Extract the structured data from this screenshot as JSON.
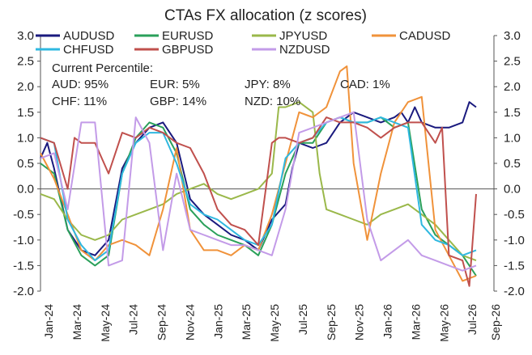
{
  "chart_data": {
    "type": "line",
    "title": "CTAs FX allocation (z scores)",
    "ylim": [
      -2.0,
      3.0
    ],
    "y_ticks": [
      "3.0",
      "2.5",
      "2.0",
      "1.5",
      "1.0",
      "0.5",
      "0.0",
      "-0.5",
      "-1.0",
      "-1.5",
      "-2.0"
    ],
    "y_ticks_right": [
      "3.0",
      "2.5",
      "2.0",
      "1.5",
      "1.0",
      "0.5",
      "0.0",
      "-0.5",
      "-1.0",
      "-1.5",
      "-2.0"
    ],
    "x_ticks": [
      "Jan-24",
      "Mar-24",
      "May-24",
      "Jul-24",
      "Sep-24",
      "Nov-24",
      "Jan-25",
      "Mar-25",
      "May-25",
      "Jul-25",
      "Sep-25",
      "Nov-25",
      "Jan-26",
      "Mar-26",
      "May-26",
      "Jul-26",
      "Sep-26"
    ],
    "xlim": [
      0,
      32
    ],
    "grid": false,
    "legend": "top",
    "legend_items": [
      {
        "name": "AUDUSD",
        "color": "#1a1a7e"
      },
      {
        "name": "EURUSD",
        "color": "#2aa05a"
      },
      {
        "name": "JPYUSD",
        "color": "#9ab84a"
      },
      {
        "name": "CADUSD",
        "color": "#f0923a"
      },
      {
        "name": "CHFUSD",
        "color": "#2fb8e0"
      },
      {
        "name": "GBPUSD",
        "color": "#c0504d"
      },
      {
        "name": "NZDUSD",
        "color": "#c39be8"
      }
    ],
    "annotation": {
      "heading": "Current Percentile:",
      "items": [
        "AUD: 95%",
        "EUR: 5%",
        "JPY: 8%",
        "CAD: 1%",
        "CHF: 11%",
        "GBP: 14%",
        "NZD: 10%"
      ]
    },
    "series": [
      {
        "name": "AUDUSD",
        "color": "#1a1a7e",
        "points": [
          [
            0,
            0.6
          ],
          [
            0.5,
            0.9
          ],
          [
            1,
            0.4
          ],
          [
            2,
            -0.8
          ],
          [
            3,
            -1.2
          ],
          [
            4,
            -1.3
          ],
          [
            5,
            -1.0
          ],
          [
            6,
            0.4
          ],
          [
            7,
            0.9
          ],
          [
            8,
            1.2
          ],
          [
            9,
            1.3
          ],
          [
            10,
            0.9
          ],
          [
            11,
            -0.2
          ],
          [
            12,
            -0.5
          ],
          [
            13,
            -0.7
          ],
          [
            14,
            -0.9
          ],
          [
            15,
            -1.0
          ],
          [
            16,
            -1.2
          ],
          [
            17,
            -0.6
          ],
          [
            18,
            -0.3
          ],
          [
            18.5,
            0.4
          ],
          [
            19,
            0.9
          ],
          [
            20,
            0.8
          ],
          [
            21,
            0.9
          ],
          [
            22,
            1.3
          ],
          [
            23,
            1.5
          ],
          [
            24,
            1.4
          ],
          [
            25,
            1.3
          ],
          [
            26,
            1.4
          ],
          [
            26.5,
            1.5
          ],
          [
            27,
            1.3
          ],
          [
            27.5,
            1.6
          ],
          [
            28,
            1.3
          ],
          [
            29,
            1.2
          ],
          [
            30,
            1.2
          ],
          [
            31,
            1.3
          ],
          [
            31.5,
            1.7
          ],
          [
            32,
            1.6
          ]
        ]
      },
      {
        "name": "EURUSD",
        "color": "#2aa05a",
        "points": [
          [
            0,
            0.5
          ],
          [
            1,
            0.3
          ],
          [
            2,
            -0.8
          ],
          [
            3,
            -1.3
          ],
          [
            4,
            -1.5
          ],
          [
            5,
            -1.3
          ],
          [
            6,
            0.3
          ],
          [
            7,
            1.0
          ],
          [
            8,
            1.3
          ],
          [
            9,
            1.2
          ],
          [
            10,
            0.7
          ],
          [
            11,
            -0.4
          ],
          [
            12,
            -0.7
          ],
          [
            13,
            -0.9
          ],
          [
            14,
            -1.0
          ],
          [
            15,
            -1.1
          ],
          [
            16,
            -1.3
          ],
          [
            17,
            -0.7
          ],
          [
            18,
            0.3
          ],
          [
            19,
            0.9
          ],
          [
            20,
            0.9
          ],
          [
            21,
            1.3
          ],
          [
            22,
            1.4
          ],
          [
            23,
            1.3
          ],
          [
            24,
            1.3
          ],
          [
            25,
            1.4
          ],
          [
            26,
            1.2
          ],
          [
            27,
            1.3
          ],
          [
            28,
            -0.4
          ],
          [
            29,
            -0.9
          ],
          [
            30,
            -1.1
          ],
          [
            31,
            -1.3
          ],
          [
            32,
            -1.7
          ]
        ]
      },
      {
        "name": "JPYUSD",
        "color": "#9ab84a",
        "points": [
          [
            0,
            -0.1
          ],
          [
            1,
            -0.2
          ],
          [
            2,
            -0.6
          ],
          [
            3,
            -0.9
          ],
          [
            4,
            -1.0
          ],
          [
            5,
            -0.9
          ],
          [
            6,
            -0.6
          ],
          [
            7,
            -0.5
          ],
          [
            8,
            -0.4
          ],
          [
            9,
            -0.3
          ],
          [
            10,
            -0.1
          ],
          [
            11,
            0.0
          ],
          [
            12,
            0.1
          ],
          [
            13,
            -0.1
          ],
          [
            14,
            -0.2
          ],
          [
            15,
            -0.1
          ],
          [
            16,
            0.0
          ],
          [
            17,
            0.3
          ],
          [
            17.5,
            1.6
          ],
          [
            18,
            1.6
          ],
          [
            19,
            1.7
          ],
          [
            20,
            1.5
          ],
          [
            20.5,
            0.3
          ],
          [
            21,
            -0.4
          ],
          [
            22,
            -0.5
          ],
          [
            23,
            -0.6
          ],
          [
            24,
            -0.7
          ],
          [
            25,
            -0.5
          ],
          [
            26,
            -0.4
          ],
          [
            27,
            -0.3
          ],
          [
            28,
            -0.5
          ],
          [
            29,
            -0.7
          ],
          [
            30,
            -1.0
          ],
          [
            31,
            -1.3
          ],
          [
            32,
            -1.4
          ]
        ]
      },
      {
        "name": "CADUSD",
        "color": "#f0923a",
        "points": [
          [
            0,
            0.7
          ],
          [
            1,
            0.2
          ],
          [
            2,
            -0.5
          ],
          [
            3,
            -1.2
          ],
          [
            4,
            -1.4
          ],
          [
            5,
            -1.1
          ],
          [
            6,
            -1.0
          ],
          [
            7,
            -1.1
          ],
          [
            8,
            -1.3
          ],
          [
            9,
            -0.4
          ],
          [
            10,
            0.8
          ],
          [
            11,
            -0.8
          ],
          [
            12,
            -1.2
          ],
          [
            13,
            -1.2
          ],
          [
            14,
            -1.3
          ],
          [
            15,
            -1.1
          ],
          [
            16,
            -1.2
          ],
          [
            17,
            -0.5
          ],
          [
            18,
            0.5
          ],
          [
            19,
            1.5
          ],
          [
            20,
            1.4
          ],
          [
            21,
            1.6
          ],
          [
            22,
            2.3
          ],
          [
            22.5,
            2.4
          ],
          [
            23,
            0.5
          ],
          [
            24,
            -1.0
          ],
          [
            25,
            0.3
          ],
          [
            26,
            1.3
          ],
          [
            27,
            1.7
          ],
          [
            28,
            1.8
          ],
          [
            29,
            -0.8
          ],
          [
            30,
            -1.3
          ],
          [
            31,
            -1.8
          ],
          [
            32,
            -1.7
          ]
        ]
      },
      {
        "name": "CHFUSD",
        "color": "#2fb8e0",
        "points": [
          [
            0,
            1.0
          ],
          [
            1,
            0.9
          ],
          [
            2,
            -0.6
          ],
          [
            3,
            -1.1
          ],
          [
            4,
            -1.4
          ],
          [
            5,
            -1.2
          ],
          [
            6,
            0.3
          ],
          [
            7,
            0.9
          ],
          [
            8,
            1.1
          ],
          [
            9,
            1.1
          ],
          [
            10,
            0.5
          ],
          [
            11,
            -0.3
          ],
          [
            12,
            -0.5
          ],
          [
            13,
            -0.6
          ],
          [
            14,
            -0.8
          ],
          [
            15,
            -1.0
          ],
          [
            16,
            -1.1
          ],
          [
            17,
            -0.7
          ],
          [
            18,
            0.6
          ],
          [
            19,
            0.9
          ],
          [
            20,
            1.0
          ],
          [
            21,
            1.3
          ],
          [
            22,
            1.4
          ],
          [
            23,
            1.3
          ],
          [
            24,
            1.3
          ],
          [
            25,
            1.4
          ],
          [
            26,
            1.3
          ],
          [
            27,
            1.2
          ],
          [
            28,
            -0.7
          ],
          [
            29,
            -1.0
          ],
          [
            30,
            -1.1
          ],
          [
            31,
            -1.3
          ],
          [
            32,
            -1.2
          ]
        ]
      },
      {
        "name": "GBPUSD",
        "color": "#c0504d",
        "points": [
          [
            0,
            1.0
          ],
          [
            1,
            0.9
          ],
          [
            2,
            0.0
          ],
          [
            2.5,
            1.0
          ],
          [
            3,
            0.9
          ],
          [
            4,
            0.9
          ],
          [
            5,
            0.3
          ],
          [
            6,
            1.1
          ],
          [
            7,
            1.0
          ],
          [
            8,
            1.2
          ],
          [
            9,
            1.1
          ],
          [
            10,
            0.9
          ],
          [
            11,
            0.8
          ],
          [
            12,
            0.3
          ],
          [
            13,
            -0.4
          ],
          [
            14,
            -0.7
          ],
          [
            15,
            -0.8
          ],
          [
            16,
            -1.1
          ],
          [
            17,
            0.9
          ],
          [
            17.5,
            1.0
          ],
          [
            18,
            1.0
          ],
          [
            19,
            0.9
          ],
          [
            20,
            1.0
          ],
          [
            21,
            1.4
          ],
          [
            22,
            1.3
          ],
          [
            23,
            1.3
          ],
          [
            24,
            1.2
          ],
          [
            25,
            1.0
          ],
          [
            26,
            1.2
          ],
          [
            27,
            1.3
          ],
          [
            28,
            1.3
          ],
          [
            29,
            0.9
          ],
          [
            29.5,
            1.2
          ],
          [
            30,
            -1.3
          ],
          [
            31,
            -1.4
          ],
          [
            31.5,
            -1.9
          ],
          [
            32,
            -0.1
          ]
        ]
      },
      {
        "name": "NZDUSD",
        "color": "#c39be8",
        "points": [
          [
            0,
            0.6
          ],
          [
            1,
            0.7
          ],
          [
            2,
            -0.4
          ],
          [
            3,
            1.3
          ],
          [
            4,
            1.3
          ],
          [
            5,
            -1.5
          ],
          [
            6,
            -1.4
          ],
          [
            7,
            1.4
          ],
          [
            8,
            0.9
          ],
          [
            9,
            -1.2
          ],
          [
            10,
            0.3
          ],
          [
            11,
            -0.8
          ],
          [
            12,
            -0.9
          ],
          [
            13,
            -1.0
          ],
          [
            14,
            -1.1
          ],
          [
            15,
            -1.1
          ],
          [
            16,
            -1.2
          ],
          [
            17,
            -1.3
          ],
          [
            18,
            -0.4
          ],
          [
            19,
            1.1
          ],
          [
            20,
            1.2
          ],
          [
            21,
            1.3
          ],
          [
            22,
            1.4
          ],
          [
            23,
            1.5
          ],
          [
            24,
            -0.6
          ],
          [
            25,
            -1.4
          ],
          [
            26,
            -1.2
          ],
          [
            27,
            -1.0
          ],
          [
            28,
            -1.3
          ],
          [
            29,
            -1.4
          ],
          [
            30,
            -1.5
          ],
          [
            31,
            -1.6
          ],
          [
            32,
            -1.5
          ]
        ]
      }
    ]
  }
}
